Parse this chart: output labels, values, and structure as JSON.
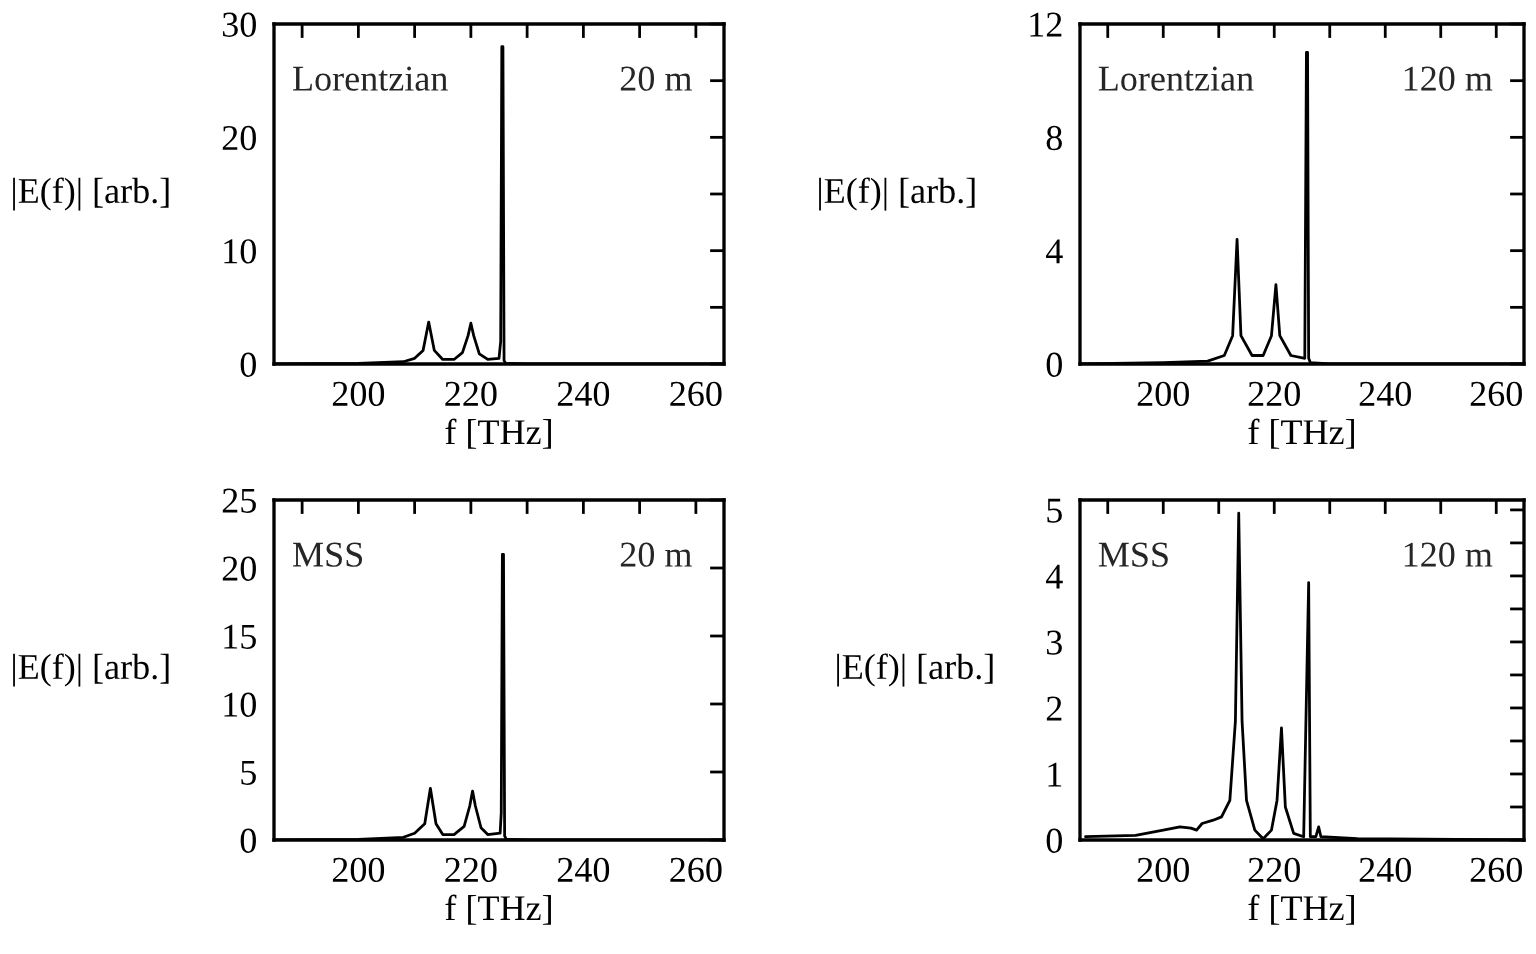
{
  "chart_data": [
    {
      "type": "line",
      "xlabel": "f [THz]",
      "ylabel": "|E(f)| [arb.]",
      "annotations": [
        "Lorentzian",
        "20 m"
      ],
      "xlim": [
        185,
        265
      ],
      "ylim": [
        0,
        30
      ],
      "xticks": [
        {
          "value": 190,
          "label": null
        },
        200,
        {
          "value": 210,
          "label": null
        },
        220,
        {
          "value": 230,
          "label": null
        },
        240,
        {
          "value": 250,
          "label": null
        },
        260
      ],
      "yticks": [
        0,
        {
          "value": 5,
          "label": null
        },
        10,
        {
          "value": 15,
          "label": null
        },
        20,
        {
          "value": 25,
          "label": null
        },
        30
      ],
      "series": [
        {
          "color": "#000000",
          "x": [
            185,
            200,
            208,
            210,
            211.5,
            212.5,
            213.5,
            215,
            217,
            218.5,
            219.5,
            220,
            220.5,
            221.5,
            223,
            225,
            225.3,
            225.5,
            225.7,
            225.9,
            226.2,
            230,
            265
          ],
          "values": [
            0,
            0.05,
            0.2,
            0.5,
            1.2,
            3.7,
            1.2,
            0.4,
            0.4,
            1.0,
            2.5,
            3.6,
            2.5,
            0.9,
            0.4,
            0.5,
            2,
            28,
            28,
            0.3,
            0.05,
            0,
            0
          ]
        }
      ]
    },
    {
      "type": "line",
      "xlabel": "f [THz]",
      "ylabel": "|E(f)| [arb.]",
      "annotations": [
        "Lorentzian",
        "120 m"
      ],
      "xlim": [
        185,
        265
      ],
      "ylim": [
        0,
        12
      ],
      "xticks": [
        {
          "value": 190,
          "label": null
        },
        200,
        {
          "value": 210,
          "label": null
        },
        220,
        {
          "value": 230,
          "label": null
        },
        240,
        {
          "value": 250,
          "label": null
        },
        260
      ],
      "yticks": [
        0,
        {
          "value": 2,
          "label": null
        },
        4,
        {
          "value": 6,
          "label": null
        },
        8,
        {
          "value": 10,
          "label": null
        },
        12
      ],
      "series": [
        {
          "color": "#000000",
          "x": [
            185,
            200,
            208,
            211,
            212.5,
            213.3,
            214,
            216,
            218,
            219.5,
            220.3,
            221,
            223,
            225.5,
            225.8,
            226,
            226.2,
            226.5,
            230,
            265
          ],
          "values": [
            0,
            0.05,
            0.1,
            0.3,
            1.0,
            4.4,
            1.0,
            0.3,
            0.3,
            1.0,
            2.8,
            1.0,
            0.3,
            0.2,
            11,
            11,
            0.2,
            0.05,
            0,
            0
          ]
        }
      ]
    },
    {
      "type": "line",
      "xlabel": "f [THz]",
      "ylabel": "|E(f)| [arb.]",
      "annotations": [
        "MSS",
        "20 m"
      ],
      "xlim": [
        185,
        265
      ],
      "ylim": [
        0,
        25
      ],
      "xticks": [
        {
          "value": 190,
          "label": null
        },
        200,
        {
          "value": 210,
          "label": null
        },
        220,
        {
          "value": 230,
          "label": null
        },
        240,
        {
          "value": 250,
          "label": null
        },
        260
      ],
      "yticks": [
        0,
        5,
        10,
        15,
        20,
        25
      ],
      "series": [
        {
          "color": "#000000",
          "x": [
            185,
            200,
            208,
            210,
            211.8,
            212.8,
            213.8,
            215,
            217,
            218.8,
            219.8,
            220.3,
            220.8,
            221.8,
            223,
            225.2,
            225.4,
            225.6,
            225.8,
            226,
            226.3,
            230,
            265
          ],
          "values": [
            0,
            0.05,
            0.2,
            0.5,
            1.2,
            3.8,
            1.2,
            0.4,
            0.4,
            1.0,
            2.5,
            3.6,
            2.5,
            0.9,
            0.4,
            0.5,
            2,
            21,
            21,
            0.3,
            0.05,
            0,
            0
          ]
        }
      ]
    },
    {
      "type": "line",
      "xlabel": "f [THz]",
      "ylabel": "|E(f)| [arb.]",
      "annotations": [
        "MSS",
        "120 m"
      ],
      "xlim": [
        185,
        265
      ],
      "ylim": [
        0,
        5.15
      ],
      "xticks": [
        {
          "value": 190,
          "label": null
        },
        200,
        {
          "value": 210,
          "label": null
        },
        220,
        {
          "value": 230,
          "label": null
        },
        240,
        {
          "value": 250,
          "label": null
        },
        260
      ],
      "yticks": [
        0,
        {
          "value": 0.5,
          "label": null
        },
        1,
        {
          "value": 1.5,
          "label": null
        },
        2,
        {
          "value": 2.5,
          "label": null
        },
        3,
        {
          "value": 3.5,
          "label": null
        },
        4,
        {
          "value": 4.5,
          "label": null
        },
        5
      ],
      "series": [
        {
          "color": "#000000",
          "x": [
            186,
            195,
            200,
            203,
            205,
            206,
            207,
            209,
            210.5,
            212,
            213,
            213.6,
            214.2,
            215,
            216.5,
            218,
            219.5,
            220.5,
            221.3,
            222,
            223.5,
            225.3,
            226.2,
            226.5,
            227.5,
            228,
            228.4,
            235,
            265
          ],
          "values": [
            0.05,
            0.07,
            0.15,
            0.2,
            0.18,
            0.15,
            0.25,
            0.3,
            0.35,
            0.6,
            1.8,
            4.95,
            1.8,
            0.6,
            0.15,
            0.02,
            0.15,
            0.6,
            1.7,
            0.5,
            0.1,
            0.05,
            3.9,
            0.05,
            0.05,
            0.2,
            0.05,
            0.02,
            0
          ]
        }
      ]
    }
  ]
}
